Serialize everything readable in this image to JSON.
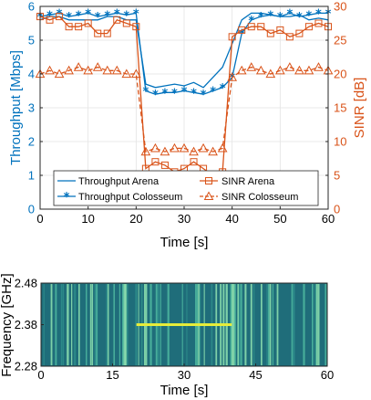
{
  "colors": {
    "blue": "#0072BD",
    "orange": "#D95319",
    "spec_bg": "#1f6d7a",
    "spec_line": "#e6ec3a"
  },
  "chart_data": [
    {
      "type": "line",
      "xlabel": "Time [s]",
      "ylabel_left": "Throughput [Mbps]",
      "ylabel_right": "SINR [dB]",
      "xlim": [
        0,
        60
      ],
      "ylim_left": [
        0,
        6
      ],
      "ylim_right": [
        0,
        30
      ],
      "x_ticks": [
        "0",
        "10",
        "20",
        "30",
        "40",
        "50",
        "60"
      ],
      "y_left_ticks": [
        "0",
        "1",
        "2",
        "3",
        "4",
        "5",
        "6"
      ],
      "y_right_ticks": [
        "0",
        "5",
        "10",
        "15",
        "20",
        "25",
        "30"
      ],
      "grid": true,
      "legend_position": "bottom",
      "x": [
        0,
        2,
        4,
        6,
        8,
        10,
        12,
        14,
        16,
        18,
        20,
        22,
        24,
        26,
        28,
        30,
        32,
        34,
        36,
        38,
        40,
        42,
        44,
        46,
        48,
        50,
        52,
        54,
        56,
        58,
        60
      ],
      "series": [
        {
          "name": "Throughput Arena",
          "axis": "left",
          "style": "solid",
          "marker": "none",
          "values": [
            5.6,
            5.7,
            5.7,
            5.6,
            5.6,
            5.6,
            5.6,
            5.7,
            5.7,
            5.6,
            5.6,
            3.7,
            3.6,
            3.65,
            3.7,
            3.65,
            3.75,
            3.6,
            3.9,
            4.2,
            4.9,
            5.6,
            5.8,
            5.8,
            5.75,
            5.7,
            5.7,
            5.75,
            5.6,
            5.65,
            5.6
          ]
        },
        {
          "name": "Throughput Colosseum",
          "axis": "left",
          "style": "solid",
          "marker": "star",
          "values": [
            5.7,
            5.75,
            5.8,
            5.7,
            5.75,
            5.8,
            5.7,
            5.75,
            5.8,
            5.75,
            5.8,
            3.5,
            3.4,
            3.45,
            3.45,
            3.5,
            3.45,
            3.4,
            3.5,
            3.6,
            3.9,
            5.2,
            5.6,
            5.7,
            5.75,
            5.7,
            5.8,
            5.7,
            5.75,
            5.8,
            5.8
          ]
        },
        {
          "name": "SINR Arena",
          "axis": "right",
          "style": "solid",
          "marker": "square",
          "values": [
            28.5,
            28,
            28.5,
            27,
            27,
            27.5,
            26,
            26,
            28,
            27.5,
            27,
            6,
            7,
            6.5,
            5.5,
            6,
            7,
            6,
            5,
            5.5,
            25.5,
            26.5,
            27,
            27,
            26,
            26.5,
            25.5,
            26,
            27,
            27.5,
            27
          ]
        },
        {
          "name": "SINR Colosseum",
          "axis": "right",
          "style": "dashed",
          "marker": "triangle",
          "values": [
            20,
            20.5,
            20,
            20.5,
            21,
            20.5,
            21,
            20.5,
            20.5,
            20,
            20,
            8.5,
            9,
            8.5,
            9,
            9,
            8.5,
            9,
            8.5,
            9,
            19.5,
            20.5,
            21,
            20.5,
            20,
            20.5,
            21,
            20.5,
            20.5,
            21,
            20.5
          ]
        }
      ]
    },
    {
      "type": "heatmap",
      "xlabel": "Time [s]",
      "ylabel": "Frequency [GHz]",
      "xlim": [
        0,
        60
      ],
      "ylim": [
        2.28,
        2.48
      ],
      "x_ticks": [
        "0",
        "15",
        "30",
        "45",
        "60"
      ],
      "y_ticks": [
        "2.48",
        "2.38",
        "2.28"
      ],
      "highlight": {
        "t_start": 20,
        "t_end": 40,
        "frequency": 2.38
      }
    }
  ]
}
